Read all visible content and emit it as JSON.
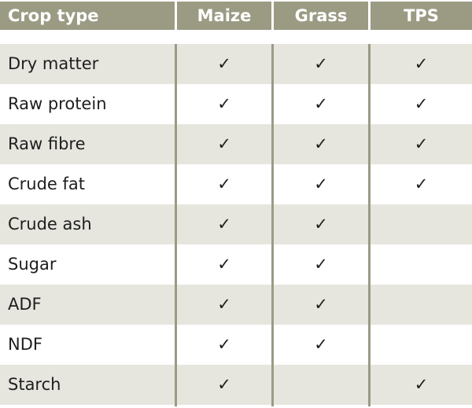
{
  "header": {
    "crop_type": "Crop type",
    "columns": [
      "Maize",
      "Grass",
      "TPS"
    ]
  },
  "rows": [
    {
      "label": "Dry matter",
      "marks": [
        "✓",
        "✓",
        "✓"
      ]
    },
    {
      "label": "Raw protein",
      "marks": [
        "✓",
        "✓",
        "✓"
      ]
    },
    {
      "label": "Raw fibre",
      "marks": [
        "✓",
        "✓",
        "✓"
      ]
    },
    {
      "label": "Crude fat",
      "marks": [
        "✓",
        "✓",
        "✓"
      ]
    },
    {
      "label": "Crude ash",
      "marks": [
        "✓",
        "✓",
        ""
      ]
    },
    {
      "label": "Sugar",
      "marks": [
        "✓",
        "✓",
        ""
      ]
    },
    {
      "label": "ADF",
      "marks": [
        "✓",
        "✓",
        ""
      ]
    },
    {
      "label": "NDF",
      "marks": [
        "✓",
        "✓",
        ""
      ]
    },
    {
      "label": "Starch",
      "marks": [
        "✓",
        "",
        "✓"
      ]
    }
  ],
  "colors": {
    "header_bg": "#9b9b84",
    "shaded_row": "#e6e6df"
  }
}
